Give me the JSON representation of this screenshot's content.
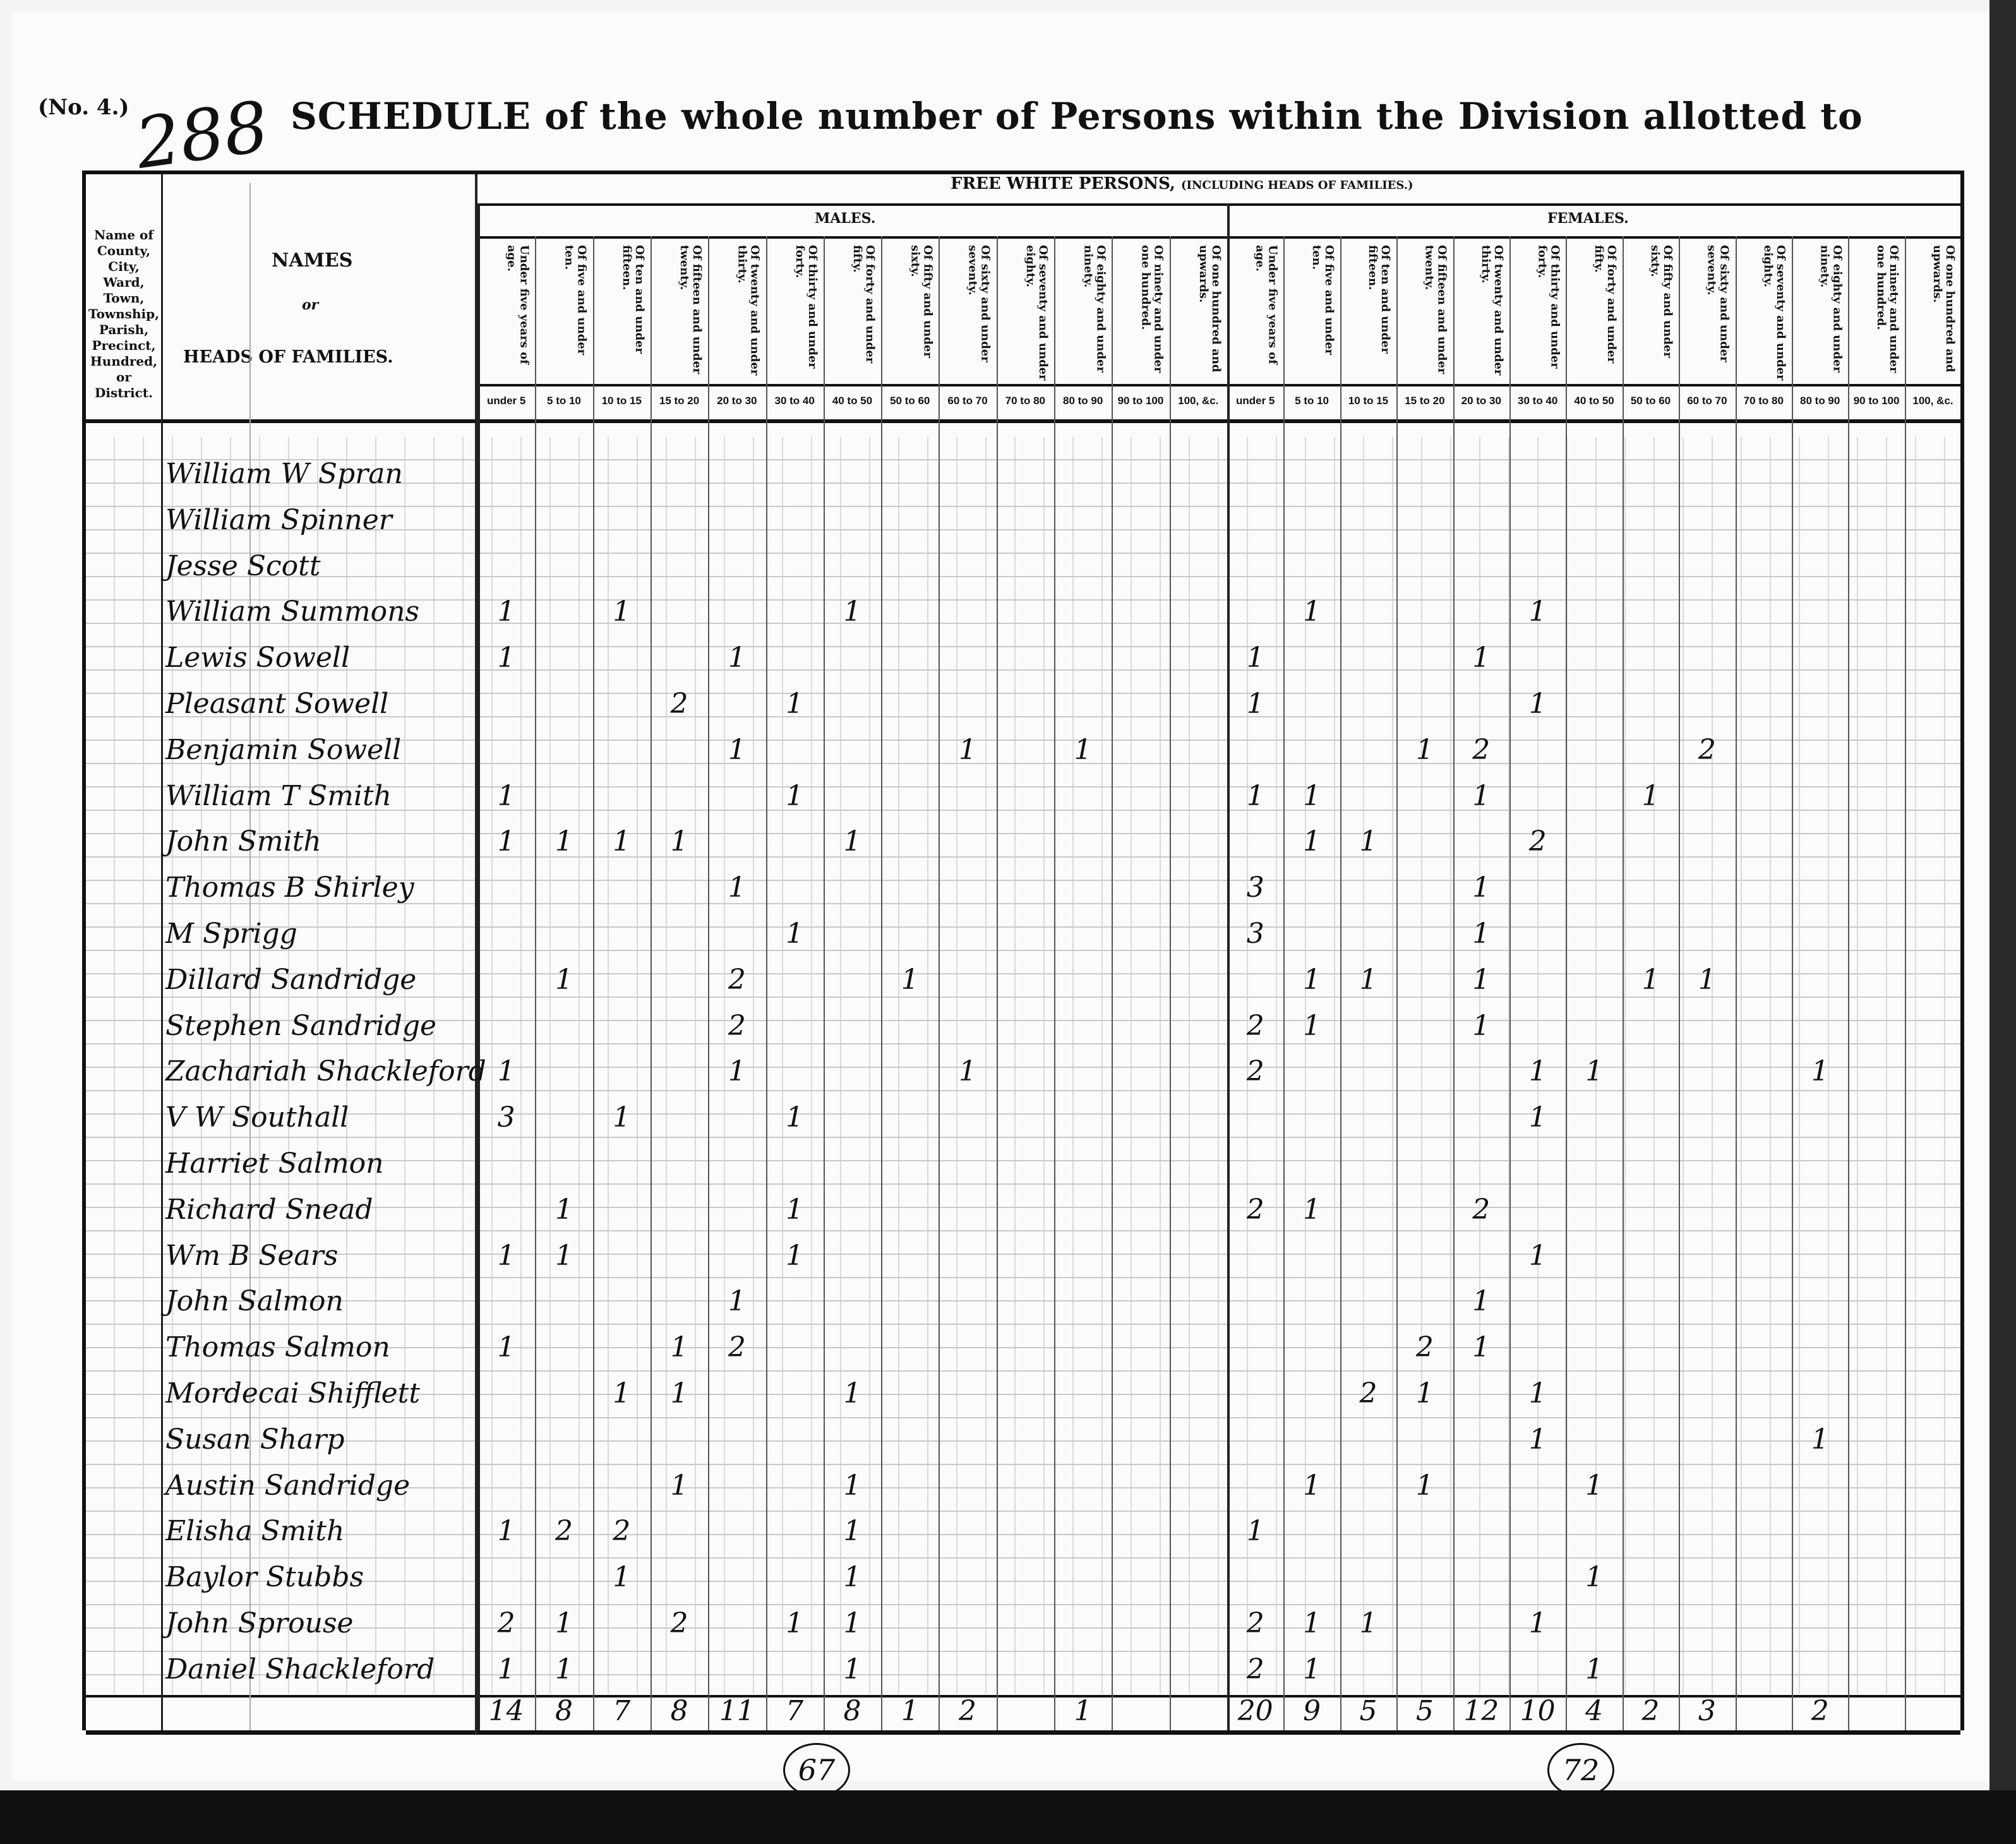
{
  "form_number": "(No. 4.)",
  "page_number": "288",
  "title": "SCHEDULE of the whole number of Persons within the Division allotted to",
  "header": {
    "free_white_persons": "FREE WHITE PERSONS,",
    "including": "(INCLUDING HEADS OF FAMILIES.)",
    "males": "MALES.",
    "females": "FEMALES.",
    "county_label": "Name of County, City, Ward, Town, Township, Parish, Precinct, Hundred, or District.",
    "names_label": "NAMES",
    "or_label": "or",
    "heads_label": "HEADS OF FAMILIES."
  },
  "age_columns": [
    {
      "label": "Under five years of age.",
      "range": "under 5"
    },
    {
      "label": "Of five and under ten.",
      "range": "5 to 10"
    },
    {
      "label": "Of ten and under fifteen.",
      "range": "10 to 15"
    },
    {
      "label": "Of fifteen and under twenty.",
      "range": "15 to 20"
    },
    {
      "label": "Of twenty and under thirty.",
      "range": "20 to 30"
    },
    {
      "label": "Of thirty and under forty.",
      "range": "30 to 40"
    },
    {
      "label": "Of forty and under fifty.",
      "range": "40 to 50"
    },
    {
      "label": "Of fifty and under sixty.",
      "range": "50 to 60"
    },
    {
      "label": "Of sixty and under seventy.",
      "range": "60 to 70"
    },
    {
      "label": "Of seventy and under eighty.",
      "range": "70 to 80"
    },
    {
      "label": "Of eighty and under ninety.",
      "range": "80 to 90"
    },
    {
      "label": "Of ninety and under one hundred.",
      "range": "90 to 100"
    },
    {
      "label": "Of one hundred and upwards.",
      "range": "100, &c."
    }
  ],
  "rows": [
    {
      "name": "William W Spran",
      "males": [
        null,
        null,
        null,
        null,
        null,
        null,
        null,
        null,
        null,
        null,
        null,
        null,
        null
      ],
      "females": [
        null,
        null,
        null,
        null,
        null,
        null,
        null,
        null,
        null,
        null,
        null,
        null,
        null
      ]
    },
    {
      "name": "William Spinner",
      "males": [
        null,
        null,
        null,
        null,
        null,
        null,
        null,
        null,
        null,
        null,
        null,
        null,
        null
      ],
      "females": [
        null,
        null,
        null,
        null,
        null,
        null,
        null,
        null,
        null,
        null,
        null,
        null,
        null
      ]
    },
    {
      "name": "Jesse Scott",
      "males": [
        null,
        null,
        null,
        null,
        null,
        null,
        null,
        null,
        null,
        null,
        null,
        null,
        null
      ],
      "females": [
        null,
        null,
        null,
        null,
        null,
        null,
        null,
        null,
        null,
        null,
        null,
        null,
        null
      ]
    },
    {
      "name": "William Summons",
      "males": [
        "1",
        null,
        "1",
        null,
        null,
        null,
        "1",
        null,
        null,
        null,
        null,
        null,
        null
      ],
      "females": [
        null,
        "1",
        null,
        null,
        null,
        "1",
        null,
        null,
        null,
        null,
        null,
        null,
        null
      ]
    },
    {
      "name": "Lewis Sowell",
      "males": [
        "1",
        null,
        null,
        null,
        "1",
        null,
        null,
        null,
        null,
        null,
        null,
        null,
        null
      ],
      "females": [
        "1",
        null,
        null,
        null,
        "1",
        null,
        null,
        null,
        null,
        null,
        null,
        null,
        null
      ]
    },
    {
      "name": "Pleasant Sowell",
      "males": [
        null,
        null,
        null,
        "2",
        null,
        "1",
        null,
        null,
        null,
        null,
        null,
        null,
        null
      ],
      "females": [
        "1",
        null,
        null,
        null,
        null,
        "1",
        null,
        null,
        null,
        null,
        null,
        null,
        null
      ]
    },
    {
      "name": "Benjamin Sowell",
      "males": [
        null,
        null,
        null,
        null,
        "1",
        null,
        null,
        null,
        "1",
        null,
        "1",
        null,
        null
      ],
      "females": [
        null,
        null,
        null,
        "1",
        "2",
        null,
        null,
        null,
        "2",
        null,
        null,
        null,
        null
      ]
    },
    {
      "name": "William T Smith",
      "males": [
        "1",
        null,
        null,
        null,
        null,
        "1",
        null,
        null,
        null,
        null,
        null,
        null,
        null
      ],
      "females": [
        "1",
        "1",
        null,
        null,
        "1",
        null,
        null,
        "1",
        null,
        null,
        null,
        null,
        null
      ]
    },
    {
      "name": "John Smith",
      "males": [
        "1",
        "1",
        "1",
        "1",
        null,
        null,
        "1",
        null,
        null,
        null,
        null,
        null,
        null
      ],
      "females": [
        null,
        "1",
        "1",
        null,
        null,
        "2",
        null,
        null,
        null,
        null,
        null,
        null,
        null
      ]
    },
    {
      "name": "Thomas B Shirley",
      "males": [
        null,
        null,
        null,
        null,
        "1",
        null,
        null,
        null,
        null,
        null,
        null,
        null,
        null
      ],
      "females": [
        "3",
        null,
        null,
        null,
        "1",
        null,
        null,
        null,
        null,
        null,
        null,
        null,
        null
      ]
    },
    {
      "name": "M Sprigg",
      "males": [
        null,
        null,
        null,
        null,
        null,
        "1",
        null,
        null,
        null,
        null,
        null,
        null,
        null
      ],
      "females": [
        "3",
        null,
        null,
        null,
        "1",
        null,
        null,
        null,
        null,
        null,
        null,
        null,
        null
      ]
    },
    {
      "name": "Dillard Sandridge",
      "males": [
        null,
        "1",
        null,
        null,
        "2",
        null,
        null,
        "1",
        null,
        null,
        null,
        null,
        null
      ],
      "females": [
        null,
        "1",
        "1",
        null,
        "1",
        null,
        null,
        "1",
        "1",
        null,
        null,
        null,
        null
      ]
    },
    {
      "name": "Stephen Sandridge",
      "males": [
        null,
        null,
        null,
        null,
        "2",
        null,
        null,
        null,
        null,
        null,
        null,
        null,
        null
      ],
      "females": [
        "2",
        "1",
        null,
        null,
        "1",
        null,
        null,
        null,
        null,
        null,
        null,
        null,
        null
      ]
    },
    {
      "name": "Zachariah Shackleford",
      "males": [
        "1",
        null,
        null,
        null,
        "1",
        null,
        null,
        null,
        "1",
        null,
        null,
        null,
        null
      ],
      "females": [
        "2",
        null,
        null,
        null,
        null,
        "1",
        "1",
        null,
        null,
        null,
        "1",
        null,
        null
      ]
    },
    {
      "name": "V W Southall",
      "males": [
        "3",
        null,
        "1",
        null,
        null,
        "1",
        null,
        null,
        null,
        null,
        null,
        null,
        null
      ],
      "females": [
        null,
        null,
        null,
        null,
        null,
        "1",
        null,
        null,
        null,
        null,
        null,
        null,
        null
      ]
    },
    {
      "name": "Harriet Salmon",
      "males": [
        null,
        null,
        null,
        null,
        null,
        null,
        null,
        null,
        null,
        null,
        null,
        null,
        null
      ],
      "females": [
        null,
        null,
        null,
        null,
        null,
        null,
        null,
        null,
        null,
        null,
        null,
        null,
        null
      ]
    },
    {
      "name": "Richard Snead",
      "males": [
        null,
        "1",
        null,
        null,
        null,
        "1",
        null,
        null,
        null,
        null,
        null,
        null,
        null
      ],
      "females": [
        "2",
        "1",
        null,
        null,
        "2",
        null,
        null,
        null,
        null,
        null,
        null,
        null,
        null
      ]
    },
    {
      "name": "Wm B Sears",
      "males": [
        "1",
        "1",
        null,
        null,
        null,
        "1",
        null,
        null,
        null,
        null,
        null,
        null,
        null
      ],
      "females": [
        null,
        null,
        null,
        null,
        null,
        "1",
        null,
        null,
        null,
        null,
        null,
        null,
        null
      ]
    },
    {
      "name": "John Salmon",
      "males": [
        null,
        null,
        null,
        null,
        "1",
        null,
        null,
        null,
        null,
        null,
        null,
        null,
        null
      ],
      "females": [
        null,
        null,
        null,
        null,
        "1",
        null,
        null,
        null,
        null,
        null,
        null,
        null,
        null
      ]
    },
    {
      "name": "Thomas Salmon",
      "males": [
        "1",
        null,
        null,
        "1",
        "2",
        null,
        null,
        null,
        null,
        null,
        null,
        null,
        null
      ],
      "females": [
        null,
        null,
        null,
        "2",
        "1",
        null,
        null,
        null,
        null,
        null,
        null,
        null,
        null
      ]
    },
    {
      "name": "Mordecai Shifflett",
      "males": [
        null,
        null,
        "1",
        "1",
        null,
        null,
        "1",
        null,
        null,
        null,
        null,
        null,
        null
      ],
      "females": [
        null,
        null,
        "2",
        "1",
        null,
        "1",
        null,
        null,
        null,
        null,
        null,
        null,
        null
      ]
    },
    {
      "name": "Susan Sharp",
      "males": [
        null,
        null,
        null,
        null,
        null,
        null,
        null,
        null,
        null,
        null,
        null,
        null,
        null
      ],
      "females": [
        null,
        null,
        null,
        null,
        null,
        "1",
        null,
        null,
        null,
        null,
        "1",
        null,
        null
      ]
    },
    {
      "name": "Austin Sandridge",
      "males": [
        null,
        null,
        null,
        "1",
        null,
        null,
        "1",
        null,
        null,
        null,
        null,
        null,
        null
      ],
      "females": [
        null,
        "1",
        null,
        "1",
        null,
        null,
        "1",
        null,
        null,
        null,
        null,
        null,
        null
      ]
    },
    {
      "name": "Elisha Smith",
      "males": [
        "1",
        "2",
        "2",
        null,
        null,
        null,
        "1",
        null,
        null,
        null,
        null,
        null,
        null
      ],
      "females": [
        "1",
        null,
        null,
        null,
        null,
        null,
        null,
        null,
        null,
        null,
        null,
        null,
        null
      ]
    },
    {
      "name": "Baylor Stubbs",
      "males": [
        null,
        null,
        "1",
        null,
        null,
        null,
        "1",
        null,
        null,
        null,
        null,
        null,
        null
      ],
      "females": [
        null,
        null,
        null,
        null,
        null,
        null,
        "1",
        null,
        null,
        null,
        null,
        null,
        null
      ]
    },
    {
      "name": "John Sprouse",
      "males": [
        "2",
        "1",
        null,
        "2",
        null,
        "1",
        "1",
        null,
        null,
        null,
        null,
        null,
        null
      ],
      "females": [
        "2",
        "1",
        "1",
        null,
        null,
        "1",
        null,
        null,
        null,
        null,
        null,
        null,
        null
      ]
    },
    {
      "name": "Daniel Shackleford",
      "males": [
        "1",
        "1",
        null,
        null,
        null,
        null,
        "1",
        null,
        null,
        null,
        null,
        null,
        null
      ],
      "females": [
        "2",
        "1",
        null,
        null,
        null,
        null,
        "1",
        null,
        null,
        null,
        null,
        null,
        null
      ]
    }
  ],
  "totals": {
    "males": [
      "14",
      "8",
      "7",
      "8",
      "11",
      "7",
      "8",
      "1",
      "2",
      null,
      "1",
      null,
      null
    ],
    "females": [
      "20",
      "9",
      "5",
      "5",
      "12",
      "10",
      "4",
      "2",
      "3",
      null,
      "2",
      null,
      null
    ]
  },
  "grand_totals": {
    "males": "67",
    "females": "72"
  }
}
